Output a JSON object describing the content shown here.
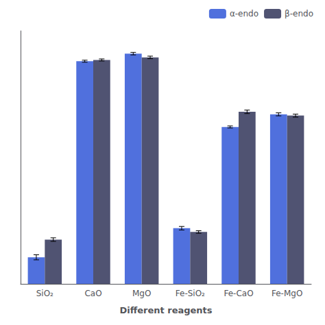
{
  "chart_data": {
    "type": "bar",
    "xlabel": "Different reagents",
    "categories": [
      "SiO₂",
      "CaO",
      "MgO",
      "Fe-SiO₂",
      "Fe-CaO",
      "Fe-MgO"
    ],
    "series": [
      {
        "name": "α-endo",
        "values": [
          10.5,
          88.0,
          91.0,
          22.0,
          62.0,
          67.0
        ],
        "errors": [
          1.0,
          0.4,
          0.5,
          0.7,
          0.4,
          0.6
        ]
      },
      {
        "name": "β-endo",
        "values": [
          17.5,
          88.5,
          89.5,
          20.5,
          68.0,
          66.5
        ],
        "errors": [
          0.7,
          0.4,
          0.5,
          0.5,
          0.7,
          0.6
        ]
      }
    ],
    "ylim": [
      0,
      100
    ],
    "yticks": [],
    "tick_labels": "x",
    "grid": false,
    "legend": "upper right"
  }
}
